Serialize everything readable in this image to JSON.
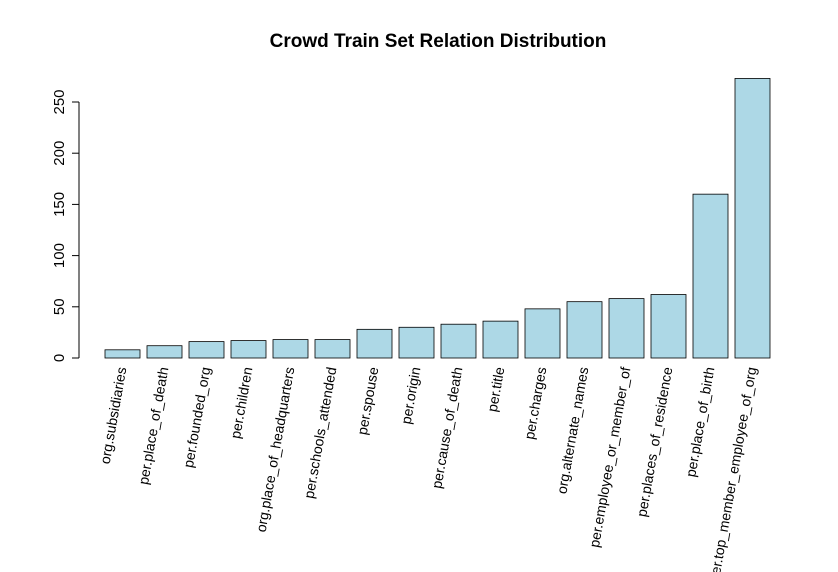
{
  "chart_data": {
    "type": "bar",
    "title": "Crowd Train Set Relation Distribution",
    "xlabel": "",
    "ylabel": "",
    "ylim": [
      0,
      275
    ],
    "yticks": [
      0,
      50,
      100,
      150,
      200,
      250
    ],
    "grid": false,
    "bar_color": "#add8e6",
    "categories": [
      "org.subsidiaries",
      "per.place_of_death",
      "per.founded_org",
      "per.children",
      "org.place_of_headquarters",
      "per.schools_attended",
      "per.spouse",
      "per.origin",
      "per.cause_of_death",
      "per.title",
      "per.charges",
      "org.alternate_names",
      "per.employee_or_member_of",
      "per.places_of_residence",
      "per.place_of_birth",
      "per.top_member_employee_of_org"
    ],
    "values": [
      8,
      12,
      16,
      17,
      18,
      18,
      28,
      30,
      33,
      36,
      48,
      55,
      58,
      62,
      160,
      273
    ]
  }
}
